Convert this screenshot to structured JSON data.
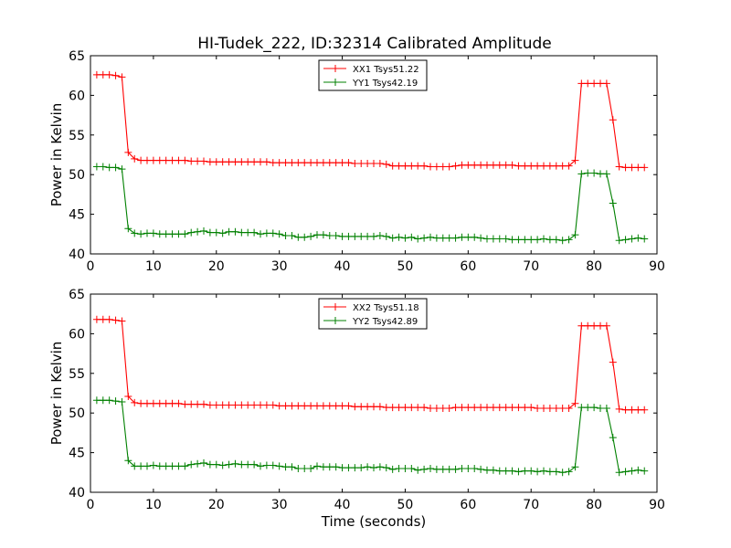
{
  "title": "HI-Tudek_222, ID:32314 Calibrated Amplitude",
  "chart_data": [
    {
      "type": "line",
      "title": "HI-Tudek_222, ID:32314 Calibrated Amplitude",
      "xlabel": "",
      "ylabel": "Power in Kelvin",
      "xlim": [
        0,
        90
      ],
      "ylim": [
        40,
        65
      ],
      "xticks": [
        "0",
        "10",
        "20",
        "30",
        "40",
        "50",
        "60",
        "70",
        "80",
        "90"
      ],
      "yticks": [
        "40",
        "45",
        "50",
        "55",
        "60",
        "65"
      ],
      "grid": false,
      "legend_position": "top-center",
      "x": [
        1,
        2,
        3,
        4,
        5,
        6,
        7,
        8,
        9,
        10,
        11,
        12,
        13,
        14,
        15,
        16,
        17,
        18,
        19,
        20,
        21,
        22,
        23,
        24,
        25,
        26,
        27,
        28,
        29,
        30,
        31,
        32,
        33,
        34,
        35,
        36,
        37,
        38,
        39,
        40,
        41,
        42,
        43,
        44,
        45,
        46,
        47,
        48,
        49,
        50,
        51,
        52,
        53,
        54,
        55,
        56,
        57,
        58,
        59,
        60,
        61,
        62,
        63,
        64,
        65,
        66,
        67,
        68,
        69,
        70,
        71,
        72,
        73,
        74,
        75,
        76,
        77,
        78,
        79,
        80,
        81,
        82,
        83,
        84,
        85,
        86,
        87,
        88
      ],
      "series": [
        {
          "name": "XX1 Tsys51.22",
          "color": "#ff0000",
          "values": [
            62.6,
            62.6,
            62.6,
            62.5,
            62.3,
            52.8,
            52.0,
            51.8,
            51.8,
            51.8,
            51.8,
            51.8,
            51.8,
            51.8,
            51.8,
            51.7,
            51.7,
            51.7,
            51.6,
            51.6,
            51.6,
            51.6,
            51.6,
            51.6,
            51.6,
            51.6,
            51.6,
            51.6,
            51.5,
            51.5,
            51.5,
            51.5,
            51.5,
            51.5,
            51.5,
            51.5,
            51.5,
            51.5,
            51.5,
            51.5,
            51.5,
            51.4,
            51.4,
            51.4,
            51.4,
            51.4,
            51.3,
            51.1,
            51.1,
            51.1,
            51.1,
            51.1,
            51.1,
            51.0,
            51.0,
            51.0,
            51.0,
            51.1,
            51.2,
            51.2,
            51.2,
            51.2,
            51.2,
            51.2,
            51.2,
            51.2,
            51.2,
            51.1,
            51.1,
            51.1,
            51.1,
            51.1,
            51.1,
            51.1,
            51.1,
            51.1,
            51.8,
            61.5,
            61.5,
            61.5,
            61.5,
            61.5,
            56.9,
            51.0,
            50.9,
            50.9,
            50.9,
            50.9
          ]
        },
        {
          "name": "YY1 Tsys42.19",
          "color": "#008000",
          "values": [
            51.0,
            51.0,
            50.9,
            50.9,
            50.7,
            43.2,
            42.6,
            42.5,
            42.6,
            42.6,
            42.5,
            42.5,
            42.5,
            42.5,
            42.5,
            42.7,
            42.8,
            42.9,
            42.7,
            42.7,
            42.6,
            42.8,
            42.8,
            42.7,
            42.7,
            42.7,
            42.5,
            42.6,
            42.6,
            42.5,
            42.3,
            42.3,
            42.1,
            42.1,
            42.2,
            42.4,
            42.4,
            42.3,
            42.3,
            42.2,
            42.2,
            42.2,
            42.2,
            42.2,
            42.2,
            42.3,
            42.2,
            42.0,
            42.1,
            42.0,
            42.1,
            41.9,
            42.0,
            42.1,
            42.0,
            42.0,
            42.0,
            42.0,
            42.1,
            42.1,
            42.1,
            42.0,
            41.9,
            41.9,
            41.9,
            41.9,
            41.8,
            41.8,
            41.8,
            41.8,
            41.8,
            41.9,
            41.8,
            41.8,
            41.7,
            41.8,
            42.4,
            50.1,
            50.2,
            50.2,
            50.1,
            50.1,
            46.4,
            41.7,
            41.8,
            41.9,
            42.0,
            41.9
          ]
        }
      ]
    },
    {
      "type": "line",
      "xlabel": "Time (seconds)",
      "ylabel": "Power in Kelvin",
      "xlim": [
        0,
        90
      ],
      "ylim": [
        40,
        65
      ],
      "xticks": [
        "0",
        "10",
        "20",
        "30",
        "40",
        "50",
        "60",
        "70",
        "80",
        "90"
      ],
      "yticks": [
        "40",
        "45",
        "50",
        "55",
        "60",
        "65"
      ],
      "grid": false,
      "legend_position": "top-center",
      "x": [
        1,
        2,
        3,
        4,
        5,
        6,
        7,
        8,
        9,
        10,
        11,
        12,
        13,
        14,
        15,
        16,
        17,
        18,
        19,
        20,
        21,
        22,
        23,
        24,
        25,
        26,
        27,
        28,
        29,
        30,
        31,
        32,
        33,
        34,
        35,
        36,
        37,
        38,
        39,
        40,
        41,
        42,
        43,
        44,
        45,
        46,
        47,
        48,
        49,
        50,
        51,
        52,
        53,
        54,
        55,
        56,
        57,
        58,
        59,
        60,
        61,
        62,
        63,
        64,
        65,
        66,
        67,
        68,
        69,
        70,
        71,
        72,
        73,
        74,
        75,
        76,
        77,
        78,
        79,
        80,
        81,
        82,
        83,
        84,
        85,
        86,
        87,
        88
      ],
      "series": [
        {
          "name": "XX2 Tsys51.18",
          "color": "#ff0000",
          "values": [
            61.8,
            61.8,
            61.8,
            61.7,
            61.6,
            52.1,
            51.3,
            51.2,
            51.2,
            51.2,
            51.2,
            51.2,
            51.2,
            51.2,
            51.1,
            51.1,
            51.1,
            51.1,
            51.0,
            51.0,
            51.0,
            51.0,
            51.0,
            51.0,
            51.0,
            51.0,
            51.0,
            51.0,
            51.0,
            50.9,
            50.9,
            50.9,
            50.9,
            50.9,
            50.9,
            50.9,
            50.9,
            50.9,
            50.9,
            50.9,
            50.9,
            50.8,
            50.8,
            50.8,
            50.8,
            50.8,
            50.7,
            50.7,
            50.7,
            50.7,
            50.7,
            50.7,
            50.7,
            50.6,
            50.6,
            50.6,
            50.6,
            50.7,
            50.7,
            50.7,
            50.7,
            50.7,
            50.7,
            50.7,
            50.7,
            50.7,
            50.7,
            50.7,
            50.7,
            50.7,
            50.6,
            50.6,
            50.6,
            50.6,
            50.6,
            50.6,
            51.2,
            61.0,
            61.0,
            61.0,
            61.0,
            61.0,
            56.4,
            50.5,
            50.4,
            50.4,
            50.4,
            50.4
          ]
        },
        {
          "name": "YY2 Tsys42.89",
          "color": "#008000",
          "values": [
            51.6,
            51.6,
            51.6,
            51.5,
            51.4,
            44.0,
            43.3,
            43.3,
            43.3,
            43.4,
            43.3,
            43.3,
            43.3,
            43.3,
            43.3,
            43.5,
            43.6,
            43.7,
            43.5,
            43.5,
            43.4,
            43.5,
            43.6,
            43.5,
            43.5,
            43.5,
            43.3,
            43.4,
            43.4,
            43.3,
            43.2,
            43.2,
            43.0,
            43.0,
            43.0,
            43.3,
            43.2,
            43.2,
            43.2,
            43.1,
            43.1,
            43.1,
            43.1,
            43.2,
            43.1,
            43.2,
            43.1,
            42.9,
            43.0,
            43.0,
            43.0,
            42.8,
            42.9,
            43.0,
            42.9,
            42.9,
            42.9,
            42.9,
            43.0,
            43.0,
            43.0,
            42.9,
            42.8,
            42.8,
            42.7,
            42.7,
            42.7,
            42.6,
            42.7,
            42.7,
            42.6,
            42.7,
            42.6,
            42.6,
            42.5,
            42.6,
            43.2,
            50.7,
            50.7,
            50.7,
            50.6,
            50.6,
            46.9,
            42.5,
            42.6,
            42.7,
            42.8,
            42.7
          ]
        }
      ]
    }
  ]
}
